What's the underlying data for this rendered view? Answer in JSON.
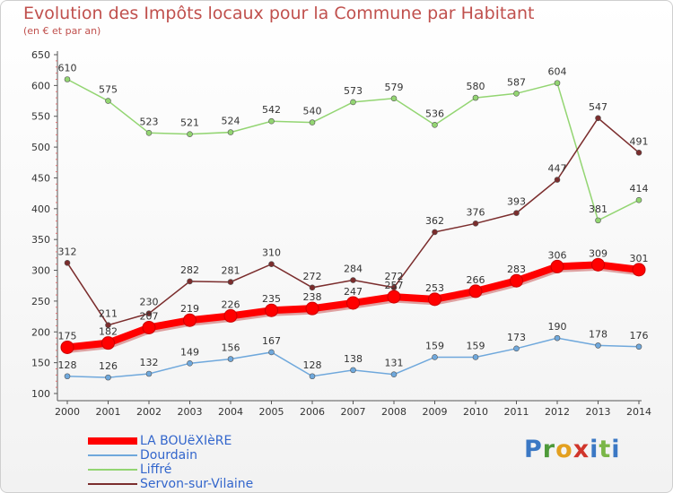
{
  "title": "Evolution des Impôts locaux pour la Commune par Habitant",
  "subtitle": "(en € et par an)",
  "logo_text": "Proxiti",
  "chart_data": {
    "type": "line",
    "x": [
      "2000",
      "2001",
      "2002",
      "2003",
      "2004",
      "2005",
      "2006",
      "2007",
      "2008",
      "2009",
      "2010",
      "2011",
      "2012",
      "2013",
      "2014"
    ],
    "ylim": [
      100,
      650
    ],
    "yticks": [
      100,
      150,
      200,
      250,
      300,
      350,
      400,
      450,
      500,
      550,
      600,
      650
    ],
    "grid": false,
    "legend_position": "bottom-left",
    "series": [
      {
        "name": "LA BOUëXIèRE",
        "color": "#ff0000",
        "emphasis": true,
        "values": [
          175,
          182,
          207,
          219,
          226,
          235,
          238,
          247,
          257,
          253,
          266,
          283,
          306,
          309,
          301
        ],
        "labels": [
          "175",
          "182",
          "207",
          "219",
          "226",
          "235",
          "238",
          "247",
          "257",
          "253",
          "266",
          "283",
          "306",
          "309",
          "301"
        ]
      },
      {
        "name": "Dourdain",
        "color": "#6fa8dc",
        "values": [
          128,
          126,
          132,
          149,
          156,
          167,
          128,
          138,
          131,
          159,
          159,
          173,
          190,
          178,
          176
        ],
        "labels": [
          "128",
          "126",
          "132",
          "149",
          "156",
          "167",
          "128",
          "138",
          "131",
          "159",
          "159",
          "173",
          "190",
          "178",
          "176"
        ]
      },
      {
        "name": "Liffré",
        "color": "#93d572",
        "values": [
          610,
          575,
          523,
          521,
          524,
          542,
          540,
          573,
          579,
          536,
          580,
          587,
          604,
          381,
          414
        ],
        "labels": [
          "610",
          "575",
          "523",
          "521",
          "524",
          "542",
          "540",
          "573",
          "579",
          "536",
          "580",
          "587",
          "604",
          "381",
          "414"
        ]
      },
      {
        "name": "Servon-sur-Vilaine",
        "color": "#7b2d2d",
        "values": [
          312,
          211,
          230,
          282,
          281,
          310,
          272,
          284,
          272,
          362,
          376,
          393,
          447,
          547,
          491
        ],
        "labels": [
          "312",
          "211",
          "230",
          "282",
          "281",
          "310",
          "272",
          "284",
          "272",
          "362",
          "376",
          "393",
          "447",
          "547",
          "491"
        ]
      }
    ]
  },
  "colors": {
    "title": "#c0504d",
    "legend_label_primary": "#3366cc",
    "axis": "#333333",
    "tick_mark": "#e07070"
  }
}
